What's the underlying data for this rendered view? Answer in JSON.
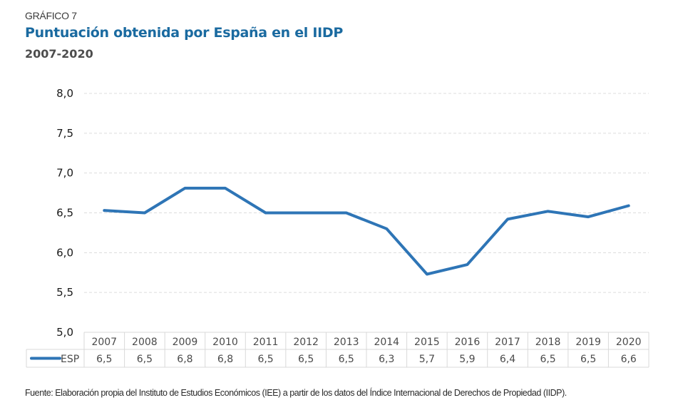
{
  "header": {
    "kicker": "GRÁFICO 7",
    "title": "Puntuación obtenida por España en el IIDP",
    "subtitle": "2007-2020"
  },
  "chart_data": {
    "type": "line",
    "title": "Puntuación obtenida por España en el IIDP",
    "subtitle": "2007-2020",
    "xlabel": "",
    "ylabel": "",
    "ylim": [
      5.0,
      8.0
    ],
    "yticks": [
      5.0,
      5.5,
      6.0,
      6.5,
      7.0,
      7.5,
      8.0
    ],
    "ytick_labels": [
      "5,0",
      "5,5",
      "6,0",
      "6,5",
      "7,0",
      "7,5",
      "8,0"
    ],
    "grid": "horizontal-dashed",
    "categories": [
      "2007",
      "2008",
      "2009",
      "2010",
      "2011",
      "2012",
      "2013",
      "2014",
      "2015",
      "2016",
      "2017",
      "2018",
      "2019",
      "2020"
    ],
    "series": [
      {
        "name": "ESP",
        "color": "#2e75b6",
        "values": [
          6.53,
          6.5,
          6.81,
          6.81,
          6.5,
          6.5,
          6.5,
          6.3,
          5.73,
          5.85,
          6.42,
          6.52,
          6.45,
          6.59
        ],
        "table_labels": [
          "6,5",
          "6,5",
          "6,8",
          "6,8",
          "6,5",
          "6,5",
          "6,5",
          "6,3",
          "5,7",
          "5,9",
          "6,4",
          "6,5",
          "6,5",
          "6,6"
        ]
      }
    ],
    "data_table": true,
    "legend": "in-data-table"
  },
  "source": "Fuente: Elaboración propia del Instituto de Estudios Económicos (IEE) a partir de los datos del Índice Internacional de Derechos de Propiedad (IIDP)."
}
